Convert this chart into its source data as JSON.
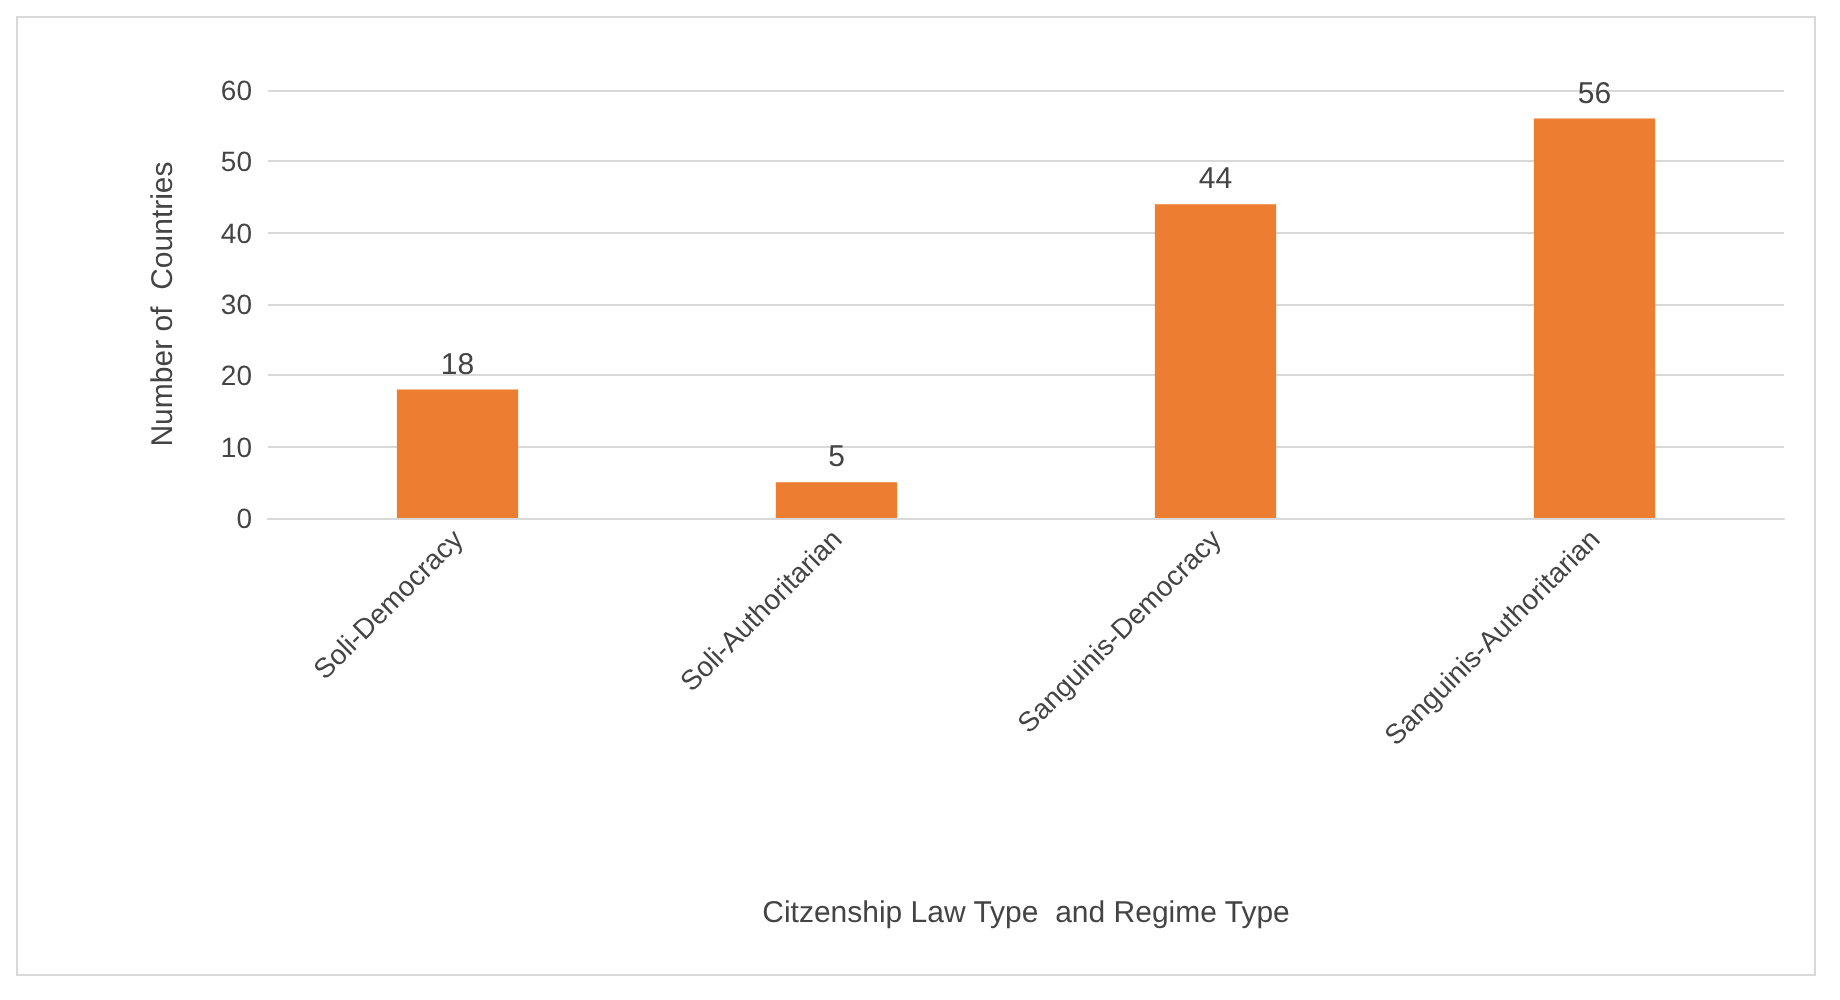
{
  "chart_data": {
    "type": "bar",
    "xlabel": "Citzenship Law Type  and Regime Type",
    "ylabel": "Number of  Countries",
    "categories": [
      "Soli-Democracy",
      "Soli-Authoritarian",
      "Sanguinis-Democracy",
      "Sanguinis-Authoritarian"
    ],
    "values": [
      18,
      5,
      44,
      56
    ],
    "color": "#ed7d31",
    "data_labels": true,
    "ylim": [
      0,
      60
    ],
    "yticks": [
      0,
      10,
      20,
      30,
      40,
      50,
      60
    ],
    "grid": "y"
  }
}
